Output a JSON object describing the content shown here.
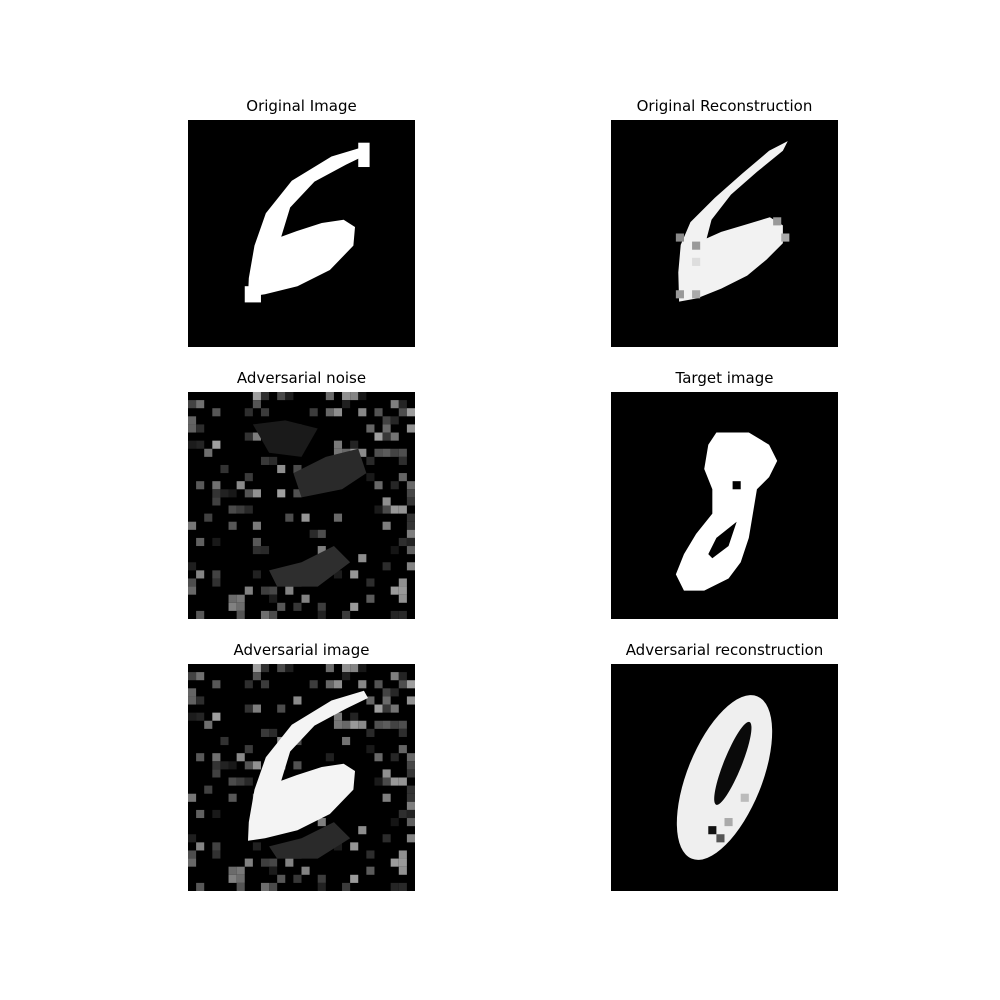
{
  "panels": [
    {
      "id": "original_image",
      "title": "Original Image",
      "content": "handwritten digit 6 (white on black)"
    },
    {
      "id": "original_reconstruction",
      "title": "Original Reconstruction",
      "content": "reconstructed digit 6"
    },
    {
      "id": "adversarial_noise",
      "title": "Adversarial noise",
      "content": "faint grayscale noise pattern"
    },
    {
      "id": "target_image",
      "title": "Target image",
      "content": "handwritten digit 8"
    },
    {
      "id": "adversarial_image",
      "title": "Adversarial image",
      "content": "digit 6 with adversarial noise"
    },
    {
      "id": "adversarial_reconstruction",
      "title": "Adversarial reconstruction",
      "content": "reconstruction resembling digit 0/8"
    }
  ],
  "colors": {
    "background": "#ffffff",
    "image_background": "#000000",
    "stroke": "#ffffff"
  }
}
